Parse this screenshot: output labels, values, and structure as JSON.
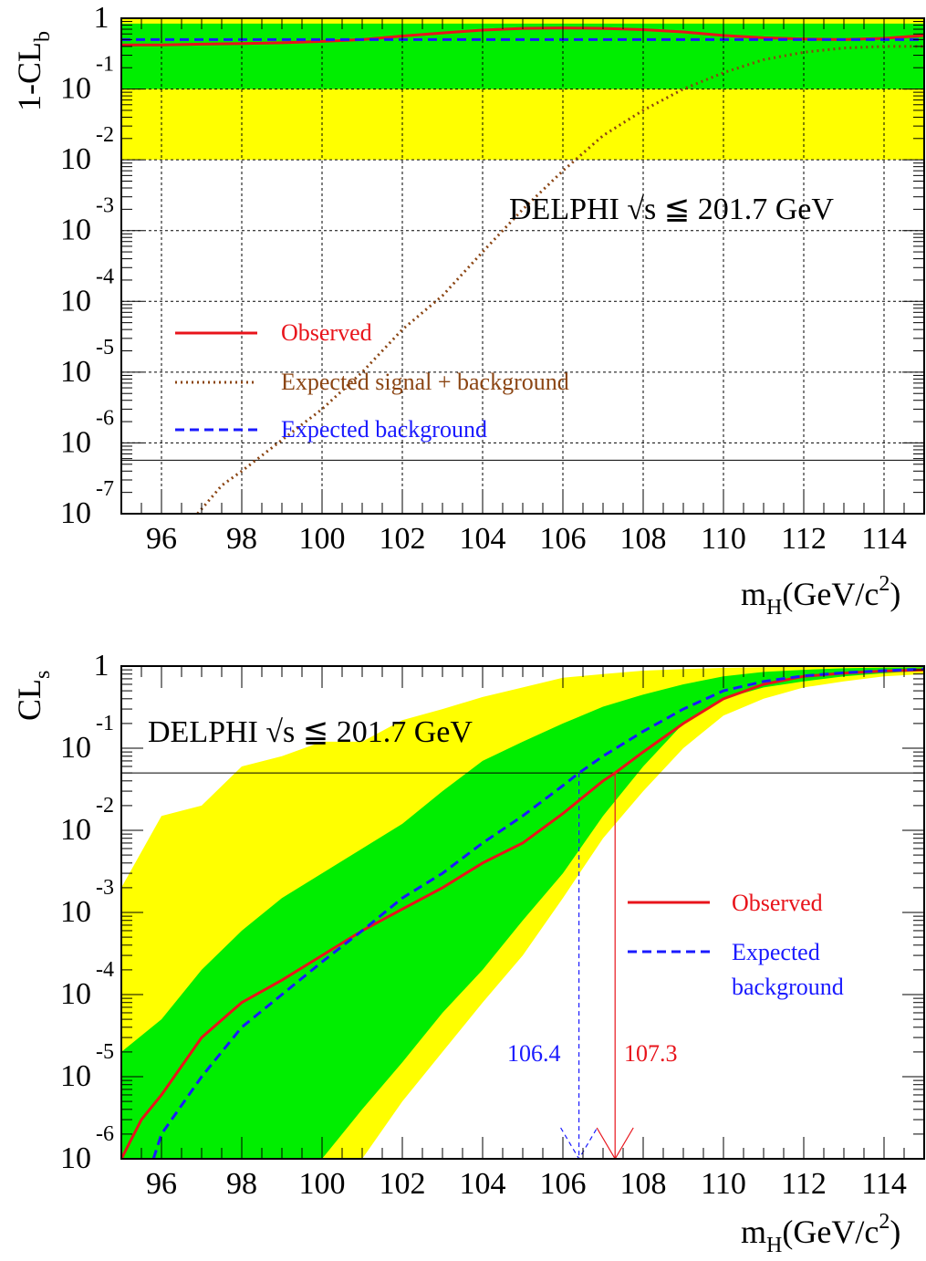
{
  "chart_data": [
    {
      "type": "line",
      "ylabel": "1-CL",
      "ylabel_sub": "b",
      "xlabel_main": "m",
      "xlabel_sub": "H",
      "xlabel_unit": "(GeV/c",
      "xlabel_sup": "2",
      "xlabel_end": ")",
      "annotation": "DELPHI √s ≦ 201.7 GeV",
      "xlim": [
        95,
        115
      ],
      "ylim": [
        1e-07,
        1
      ],
      "yscale": "log",
      "x_ticks": [
        96,
        98,
        100,
        102,
        104,
        106,
        108,
        110,
        112,
        114
      ],
      "x_tick_labels": [
        "96",
        "98",
        "100",
        "102",
        "104",
        "106",
        "108",
        "110",
        "112",
        "114"
      ],
      "y_tick_labels": [
        {
          "value": 1,
          "base": "1",
          "exp": ""
        },
        {
          "value": 0.1,
          "base": "10",
          "exp": "-1"
        },
        {
          "value": 0.01,
          "base": "10",
          "exp": "-2"
        },
        {
          "value": 0.001,
          "base": "10",
          "exp": "-3"
        },
        {
          "value": 0.0001,
          "base": "10",
          "exp": "-4"
        },
        {
          "value": 1e-05,
          "base": "10",
          "exp": "-5"
        },
        {
          "value": 1e-06,
          "base": "10",
          "exp": "-6"
        },
        {
          "value": 1e-07,
          "base": "10",
          "exp": "-7"
        }
      ],
      "grid": true,
      "reference_line": 5.7e-07,
      "bands": {
        "yellow": [
          0.01,
          0.975
        ],
        "green": [
          0.1,
          0.84
        ]
      },
      "legend_position": "middle-left",
      "series": [
        {
          "name": "Observed",
          "color": "#e8141b",
          "style": "solid",
          "x": [
            95,
            96,
            97,
            98,
            99,
            100,
            101,
            102,
            103,
            104,
            105,
            106,
            107,
            108,
            109,
            110,
            111,
            112,
            113,
            114,
            115
          ],
          "y": [
            0.42,
            0.42,
            0.43,
            0.44,
            0.45,
            0.47,
            0.5,
            0.56,
            0.62,
            0.68,
            0.72,
            0.73,
            0.72,
            0.69,
            0.64,
            0.57,
            0.53,
            0.51,
            0.5,
            0.52,
            0.57
          ]
        },
        {
          "name": "Expected signal + background",
          "color": "#8b4513",
          "style": "dotted",
          "x": [
            96.9,
            97.5,
            98,
            99,
            100,
            101,
            102,
            103,
            104,
            105,
            106,
            107,
            108,
            109,
            110,
            111,
            112,
            113,
            114,
            115
          ],
          "y": [
            8e-08,
            2.5e-07,
            4e-07,
            1.1e-06,
            3e-06,
            1e-05,
            4e-05,
            0.00012,
            0.0005,
            0.002,
            0.007,
            0.022,
            0.05,
            0.1,
            0.17,
            0.26,
            0.33,
            0.38,
            0.4,
            0.4
          ]
        },
        {
          "name": "Expected background",
          "color": "#1a1aff",
          "style": "dashed",
          "x": [
            95,
            115
          ],
          "y": [
            0.5,
            0.5
          ]
        }
      ]
    },
    {
      "type": "line",
      "ylabel": "CL",
      "ylabel_sub": "s",
      "xlabel_main": "m",
      "xlabel_sub": "H",
      "xlabel_unit": "(GeV/c",
      "xlabel_sup": "2",
      "xlabel_end": ")",
      "annotation": "DELPHI √s ≦ 201.7 GeV",
      "xlim": [
        95,
        115
      ],
      "ylim": [
        1e-06,
        1
      ],
      "yscale": "log",
      "x_ticks": [
        96,
        98,
        100,
        102,
        104,
        106,
        108,
        110,
        112,
        114
      ],
      "x_tick_labels": [
        "96",
        "98",
        "100",
        "102",
        "104",
        "106",
        "108",
        "110",
        "112",
        "114"
      ],
      "y_tick_labels": [
        {
          "value": 1,
          "base": "1",
          "exp": ""
        },
        {
          "value": 0.1,
          "base": "10",
          "exp": "-1"
        },
        {
          "value": 0.01,
          "base": "10",
          "exp": "-2"
        },
        {
          "value": 0.001,
          "base": "10",
          "exp": "-3"
        },
        {
          "value": 0.0001,
          "base": "10",
          "exp": "-4"
        },
        {
          "value": 1e-05,
          "base": "10",
          "exp": "-5"
        },
        {
          "value": 1e-06,
          "base": "10",
          "exp": "-6"
        }
      ],
      "grid": false,
      "reference_line": 0.05,
      "legend_position": "middle-right",
      "bands": {
        "x": [
          95,
          96,
          97,
          98,
          99,
          100,
          101,
          102,
          103,
          104,
          105,
          106,
          107,
          108,
          109,
          110,
          111,
          112,
          113,
          114,
          115
        ],
        "yellow_upper": [
          0.002,
          0.015,
          0.02,
          0.06,
          0.08,
          0.12,
          0.12,
          0.22,
          0.3,
          0.42,
          0.55,
          0.72,
          0.8,
          0.88,
          0.92,
          0.95,
          0.97,
          0.98,
          0.985,
          0.99,
          0.99
        ],
        "yellow_lower": [
          1e-06,
          1e-06,
          1e-06,
          1e-06,
          1e-06,
          1e-06,
          1e-06,
          5e-06,
          2e-05,
          8e-05,
          0.0003,
          0.0015,
          0.008,
          0.03,
          0.1,
          0.25,
          0.4,
          0.55,
          0.65,
          0.75,
          0.8
        ],
        "green_upper": [
          2e-05,
          5e-05,
          0.0002,
          0.0006,
          0.0015,
          0.003,
          0.006,
          0.012,
          0.03,
          0.07,
          0.12,
          0.2,
          0.32,
          0.45,
          0.6,
          0.75,
          0.85,
          0.9,
          0.94,
          0.96,
          0.97
        ],
        "green_lower": [
          1e-06,
          1e-06,
          1e-06,
          1e-06,
          1e-06,
          1e-06,
          4e-06,
          1.5e-05,
          6e-05,
          0.0002,
          0.0008,
          0.003,
          0.015,
          0.06,
          0.2,
          0.4,
          0.55,
          0.65,
          0.75,
          0.82,
          0.88
        ]
      },
      "series": [
        {
          "name": "Observed",
          "color": "#e8141b",
          "style": "solid",
          "x": [
            95,
            95.5,
            96,
            97,
            98,
            99,
            100,
            101,
            102,
            103,
            104,
            105,
            106,
            107,
            107.3,
            108,
            109,
            110,
            111,
            112,
            113,
            114,
            115
          ],
          "y": [
            1e-06,
            3e-06,
            6e-06,
            3e-05,
            8e-05,
            0.00015,
            0.0003,
            0.0006,
            0.0011,
            0.002,
            0.004,
            0.007,
            0.016,
            0.04,
            0.05,
            0.09,
            0.2,
            0.4,
            0.6,
            0.75,
            0.82,
            0.87,
            0.9
          ]
        },
        {
          "name": "Expected background",
          "color": "#1a1aff",
          "style": "dashed",
          "x": [
            95.8,
            96,
            97,
            98,
            99,
            100,
            101,
            102,
            103,
            104,
            105,
            106,
            106.4,
            107,
            108,
            109,
            110,
            111,
            112,
            113,
            114,
            115
          ],
          "y": [
            1e-06,
            2e-06,
            1e-05,
            4e-05,
            0.0001,
            0.00025,
            0.0006,
            0.0015,
            0.003,
            0.007,
            0.015,
            0.035,
            0.05,
            0.08,
            0.16,
            0.3,
            0.5,
            0.65,
            0.76,
            0.83,
            0.88,
            0.92
          ]
        }
      ],
      "limits": [
        {
          "label": "106.4",
          "value": 106.4,
          "color": "#1a1aff",
          "style": "dashed"
        },
        {
          "label": "107.3",
          "value": 107.3,
          "color": "#e8141b",
          "style": "solid"
        }
      ],
      "legend_extra_line": "background",
      "legend_first_line": "Expected"
    }
  ]
}
